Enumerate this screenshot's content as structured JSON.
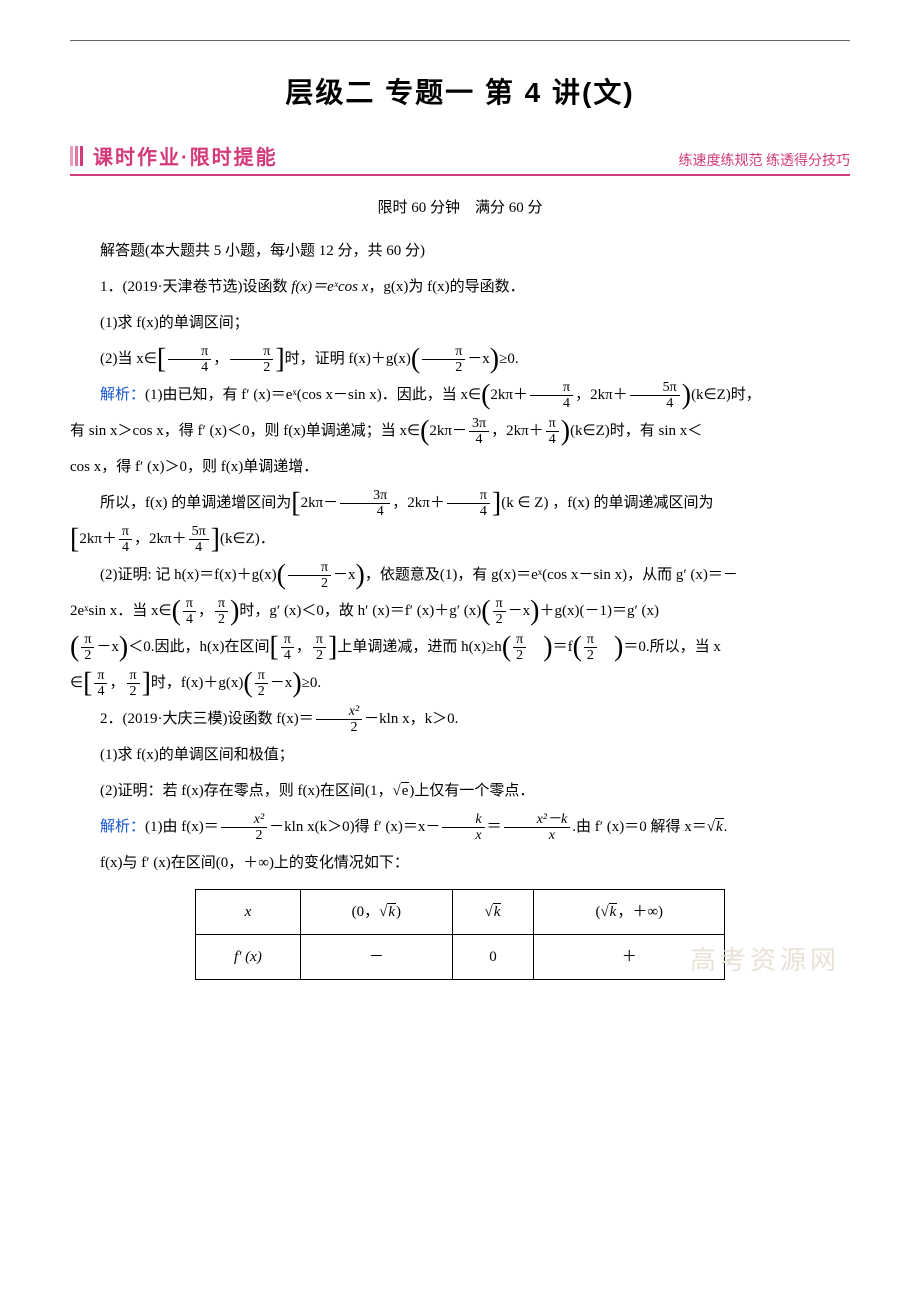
{
  "colors": {
    "accent": "#d33a7b",
    "link_blue": "#1155cc",
    "text": "#000000",
    "background": "#ffffff",
    "rule_gray": "#666666",
    "watermark": "#e8e2d6"
  },
  "typography": {
    "body_font": "SimSun",
    "heading_font": "SimHei",
    "math_font": "Times New Roman",
    "title_size_pt": 21,
    "section_title_size_pt": 15,
    "body_size_pt": 11
  },
  "header": {
    "title": "层级二  专题一  第 4 讲(文)"
  },
  "section": {
    "title": "课时作业·限时提能",
    "subtitle": "练速度练规范  练透得分技巧"
  },
  "meta": {
    "time_limit": "限时 60 分钟",
    "full_score": "满分 60 分"
  },
  "watermark": "高考资源网",
  "intro": "解答题(本大题共 5 小题，每小题 12 分，共 60 分)",
  "q1": {
    "stem": "1．(2019·天津卷节选)设函数",
    "fx": "f(x)＝eˣcos x",
    "gx_desc": "，g(x)为 f(x)的导函数．",
    "part1": "(1)求 f(x)的单调区间；",
    "part2_prefix": "(2)当 x∈",
    "part2_interval_a": "π",
    "part2_interval_a_den": "4",
    "part2_interval_b": "π",
    "part2_interval_b_den": "2",
    "part2_mid": "时，证明 f(x)＋g(x)",
    "part2_arg_a": "π",
    "part2_arg_a_den": "2",
    "part2_arg_rest": "－x",
    "part2_tail": "≥0.",
    "sol_label": "解析：",
    "sol1_a": "(1)由已知，有 f′ (x)＝eˣ(cos x－sin x)．因此，当 x∈",
    "sol1_int1_a_pre": "2kπ＋",
    "sol1_int1_a_num": "π",
    "sol1_int1_a_den": "4",
    "sol1_int1_b_pre": "2kπ＋",
    "sol1_int1_b_num": "5π",
    "sol1_int1_b_den": "4",
    "sol1_k": "(k∈Z)时，",
    "sol1_b": "有 sin x＞cos x，得 f′ (x)＜0，则 f(x)单调递减；当 x∈",
    "sol1_int2_a_pre": "2kπ－",
    "sol1_int2_a_num": "3π",
    "sol1_int2_a_den": "4",
    "sol1_int2_b_pre": "2kπ＋",
    "sol1_int2_b_num": "π",
    "sol1_int2_b_den": "4",
    "sol1_c": "(k∈Z)时，有 sin x＜",
    "sol1_d": "cos x，得 f′ (x)＞0，则 f(x)单调递增．",
    "sol1_e_pre": "所以，f(x) 的单调递增区间为",
    "sol1_e_mid": "(k ∈ Z) ，f(x) 的单调递减区间为",
    "sol1_f_tail": "(k∈Z)．",
    "sol2_a": "(2)证明: 记 h(x)＝f(x)＋g(x)",
    "sol2_a2": "，依题意及(1)，有 g(x)＝eˣ(cos x－sin x)，从而 g′ (x)＝－",
    "sol2_b": "2eˣsin x．当 x∈",
    "sol2_b2": "时，g′ (x)＜0，故 h′ (x)＝f′ (x)＋g′ (x)",
    "sol2_b3": "＋g(x)(－1)＝g′ (x)",
    "sol2_c": "＜0.因此，h(x)在区间",
    "sol2_c2": "上单调递减，进而 h(x)≥h",
    "sol2_c3": "＝f",
    "sol2_c4": "＝0.所以，当 x",
    "sol2_d": "∈",
    "sol2_d2": "时，f(x)＋g(x)",
    "sol2_d3": "≥0."
  },
  "q2": {
    "stem_a": "2．(2019·大庆三模)设函数 f(x)＝",
    "frac_num": "x²",
    "frac_den": "2",
    "stem_b": "－kln x，k＞0.",
    "part1": "(1)求 f(x)的单调区间和极值；",
    "part2_a": "(2)证明：若 f(x)存在零点，则 f(x)在区间(1，",
    "part2_sqrt": "e",
    "part2_b": ")上仅有一个零点．",
    "sol_label": "解析：",
    "sol1_a": "(1)由 f(x)＝",
    "sol1_b": "－kln x(k＞0)得 f′ (x)＝x－",
    "sol1_frac2_num": "k",
    "sol1_frac2_den": "x",
    "sol1_c": "＝",
    "sol1_frac3_num": "x²－k",
    "sol1_frac3_den": "x",
    "sol1_d": ".由 f′ (x)＝0 解得 x＝",
    "sol1_sqrt": "k",
    "sol1_e": ".",
    "sol1_f": "f(x)与 f′ (x)在区间(0，＋∞)上的变化情况如下："
  },
  "table": {
    "columns": [
      "x",
      "(0，√k)",
      "√k",
      "(√k，＋∞)"
    ],
    "rows": [
      [
        "f′ (x)",
        "－",
        "0",
        "＋"
      ]
    ],
    "col_widths_pct": [
      16,
      28,
      28,
      28
    ],
    "border_color": "#000000"
  }
}
